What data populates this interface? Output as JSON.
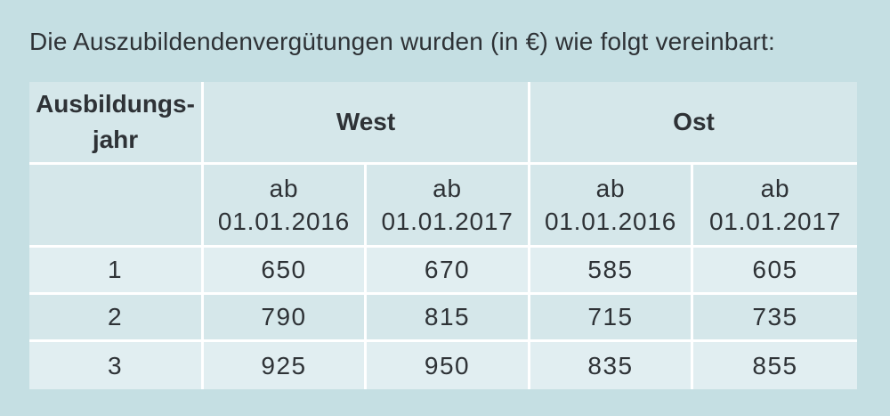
{
  "page": {
    "title": "Die Auszubildendenvergütungen wurden (in €) wie folgt vereinbart:"
  },
  "colors": {
    "page_bg": "#c5dfe3",
    "header_cell": "#d5e7ea",
    "row_odd": "#e1eef1",
    "row_even": "#d5e7ea",
    "gridline": "#ffffff",
    "text": "#2e3236"
  },
  "table": {
    "header": {
      "year_line1": "Ausbildungs-",
      "year_line2": "jahr",
      "west": "West",
      "ost": "Ost"
    },
    "sub_headers": [
      {
        "line1": "ab",
        "line2": "01.01.2016"
      },
      {
        "line1": "ab",
        "line2": "01.01.2017"
      },
      {
        "line1": "ab",
        "line2": "01.01.2016"
      },
      {
        "line1": "ab",
        "line2": "01.01.2017"
      }
    ]
  },
  "chart_data": {
    "type": "table",
    "title": "Die Auszubildendenvergütungen wurden (in €) wie folgt vereinbart:",
    "columns": [
      "Ausbildungsjahr",
      "West ab 01.01.2016",
      "West ab 01.01.2017",
      "Ost ab 01.01.2016",
      "Ost ab 01.01.2017"
    ],
    "rows": [
      [
        "1",
        "650",
        "670",
        "585",
        "605"
      ],
      [
        "2",
        "790",
        "815",
        "715",
        "735"
      ],
      [
        "3",
        "925",
        "950",
        "835",
        "855"
      ]
    ]
  }
}
